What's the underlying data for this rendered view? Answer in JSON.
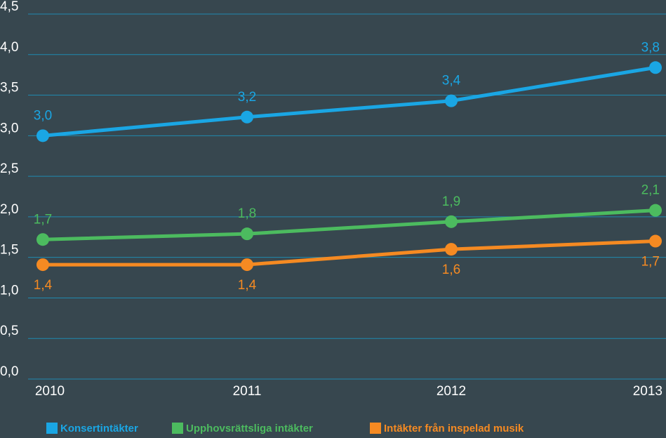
{
  "chart_data": {
    "type": "line",
    "categories": [
      "2010",
      "2011",
      "2012",
      "2013"
    ],
    "series": [
      {
        "name": "Konsertintäkter",
        "color": "#1aa6e4",
        "values": [
          3.0,
          3.23,
          3.43,
          3.84
        ],
        "value_labels": [
          "3,0",
          "3,2",
          "3,4",
          "3,8"
        ]
      },
      {
        "name": "Upphovsrättsliga intäkter",
        "color": "#4cbb5f",
        "values": [
          1.72,
          1.79,
          1.94,
          2.08
        ],
        "value_labels": [
          "1,7",
          "1,8",
          "1,9",
          "2,1"
        ]
      },
      {
        "name": "Intäkter från inspelad musik",
        "color": "#f58a22",
        "values": [
          1.41,
          1.41,
          1.6,
          1.7
        ],
        "value_labels": [
          "1,4",
          "1,4",
          "1,6",
          "1,7"
        ]
      }
    ],
    "ylim": [
      0,
      4.5
    ],
    "yticks": [
      {
        "value": 0,
        "label": "0,0"
      },
      {
        "value": 0.5,
        "label": "0,5"
      },
      {
        "value": 1,
        "label": "1,0"
      },
      {
        "value": 1.5,
        "label": "1,5"
      },
      {
        "value": 2,
        "label": "2,0"
      },
      {
        "value": 2.5,
        "label": "2,5"
      },
      {
        "value": 3,
        "label": "3,0"
      },
      {
        "value": 3.5,
        "label": "3,5"
      },
      {
        "value": 4,
        "label": "4,0"
      },
      {
        "value": 4.5,
        "label": "4,5"
      }
    ],
    "grid": true
  }
}
